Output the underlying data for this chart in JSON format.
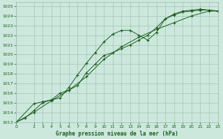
{
  "title": "Graphe pression niveau de la mer (hPa)",
  "background_color": "#cce8dd",
  "grid_color": "#99bbaa",
  "line_color": "#1a5c1a",
  "xlim": [
    0,
    23
  ],
  "ylim": [
    1013,
    1025.4
  ],
  "yticks": [
    1013,
    1014,
    1015,
    1016,
    1017,
    1018,
    1019,
    1020,
    1021,
    1022,
    1023,
    1024,
    1025
  ],
  "xticks": [
    0,
    2,
    3,
    4,
    5,
    6,
    7,
    8,
    9,
    10,
    11,
    12,
    13,
    14,
    15,
    16,
    17,
    18,
    19,
    20,
    21,
    22,
    23
  ],
  "line1_x": [
    0,
    1,
    2,
    3,
    4,
    5,
    6,
    7,
    8,
    9,
    10,
    11,
    12,
    13,
    14,
    15,
    16,
    17,
    18,
    19,
    20,
    21,
    22,
    23
  ],
  "line1_y": [
    1013.0,
    1013.4,
    1014.2,
    1015.0,
    1015.3,
    1015.5,
    1016.6,
    1017.9,
    1019.1,
    1020.2,
    1021.3,
    1022.1,
    1022.5,
    1022.5,
    1022.0,
    1021.5,
    1022.3,
    1023.7,
    1024.2,
    1024.5,
    1024.6,
    1024.7,
    1024.6,
    1024.5
  ],
  "line2_x": [
    0,
    2,
    3,
    4,
    5,
    6,
    7,
    8,
    9,
    10,
    11,
    12,
    13,
    14,
    15,
    16,
    17,
    18,
    19,
    20,
    21,
    22,
    23
  ],
  "line2_y": [
    1013.0,
    1014.9,
    1015.1,
    1015.3,
    1016.0,
    1016.3,
    1016.8,
    1018.1,
    1019.0,
    1019.9,
    1020.2,
    1020.6,
    1021.0,
    1021.5,
    1022.0,
    1022.8,
    1023.7,
    1024.1,
    1024.4,
    1024.5,
    1024.6,
    1024.6,
    1024.5
  ],
  "line3_x": [
    0,
    2,
    4,
    6,
    8,
    10,
    12,
    14,
    16,
    18,
    20,
    22,
    23
  ],
  "line3_y": [
    1013.0,
    1014.0,
    1015.2,
    1016.3,
    1017.7,
    1019.5,
    1020.8,
    1021.8,
    1022.6,
    1023.3,
    1024.0,
    1024.5,
    1024.5
  ]
}
